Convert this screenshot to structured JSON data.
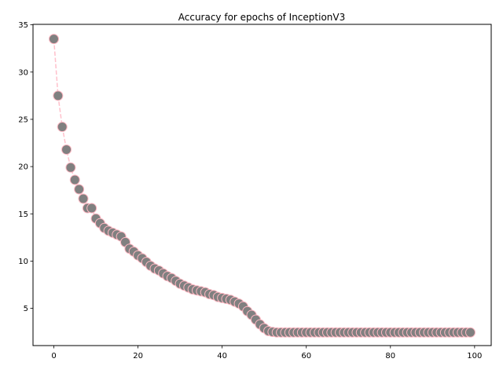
{
  "chart_data": {
    "type": "line",
    "title": "Accuracy for epochs of InceptionV3",
    "xlabel": "",
    "ylabel": "",
    "xlim": [
      -4.95,
      103.95
    ],
    "ylim": [
      1.06,
      35.05
    ],
    "xticks": [
      0,
      20,
      40,
      60,
      80,
      100
    ],
    "yticks": [
      5,
      10,
      15,
      20,
      25,
      30,
      35
    ],
    "grid": false,
    "line_color": "#ffc0cb",
    "line_style": "dashed",
    "marker_face_color": "#808080",
    "marker_edge_color": "#ffb6c1",
    "series": [
      {
        "x": [
          0,
          1,
          2,
          3,
          4,
          5,
          6,
          7,
          8,
          9,
          10,
          11,
          12,
          13,
          14,
          15,
          16,
          17,
          18,
          19,
          20,
          21,
          22,
          23,
          24,
          25,
          26,
          27,
          28,
          29,
          30,
          31,
          32,
          33,
          34,
          35,
          36,
          37,
          38,
          39,
          40,
          41,
          42,
          43,
          44,
          45,
          46,
          47,
          48,
          49,
          50,
          51,
          52,
          53,
          54,
          55,
          56,
          57,
          58,
          59,
          60,
          61,
          62,
          63,
          64,
          65,
          66,
          67,
          68,
          69,
          70,
          71,
          72,
          73,
          74,
          75,
          76,
          77,
          78,
          79,
          80,
          81,
          82,
          83,
          84,
          85,
          86,
          87,
          88,
          89,
          90,
          91,
          92,
          93,
          94,
          95,
          96,
          97,
          98,
          99
        ],
        "y": [
          33.5,
          27.5,
          24.2,
          21.8,
          19.9,
          18.6,
          17.6,
          16.6,
          15.6,
          15.6,
          14.5,
          14.0,
          13.5,
          13.2,
          13.0,
          12.8,
          12.6,
          12.0,
          11.3,
          11.0,
          10.6,
          10.3,
          9.9,
          9.5,
          9.2,
          9.0,
          8.7,
          8.4,
          8.2,
          7.9,
          7.6,
          7.4,
          7.2,
          7.0,
          6.9,
          6.8,
          6.7,
          6.5,
          6.4,
          6.2,
          6.1,
          6.0,
          5.9,
          5.7,
          5.5,
          5.2,
          4.7,
          4.3,
          3.8,
          3.3,
          2.9,
          2.6,
          2.5,
          2.45,
          2.45,
          2.45,
          2.45,
          2.45,
          2.45,
          2.45,
          2.45,
          2.45,
          2.45,
          2.45,
          2.45,
          2.45,
          2.45,
          2.45,
          2.45,
          2.45,
          2.45,
          2.45,
          2.45,
          2.45,
          2.45,
          2.45,
          2.45,
          2.45,
          2.45,
          2.45,
          2.45,
          2.45,
          2.45,
          2.45,
          2.45,
          2.45,
          2.45,
          2.45,
          2.45,
          2.45,
          2.45,
          2.45,
          2.45,
          2.45,
          2.45,
          2.45,
          2.45,
          2.45,
          2.45,
          2.45
        ]
      }
    ]
  }
}
